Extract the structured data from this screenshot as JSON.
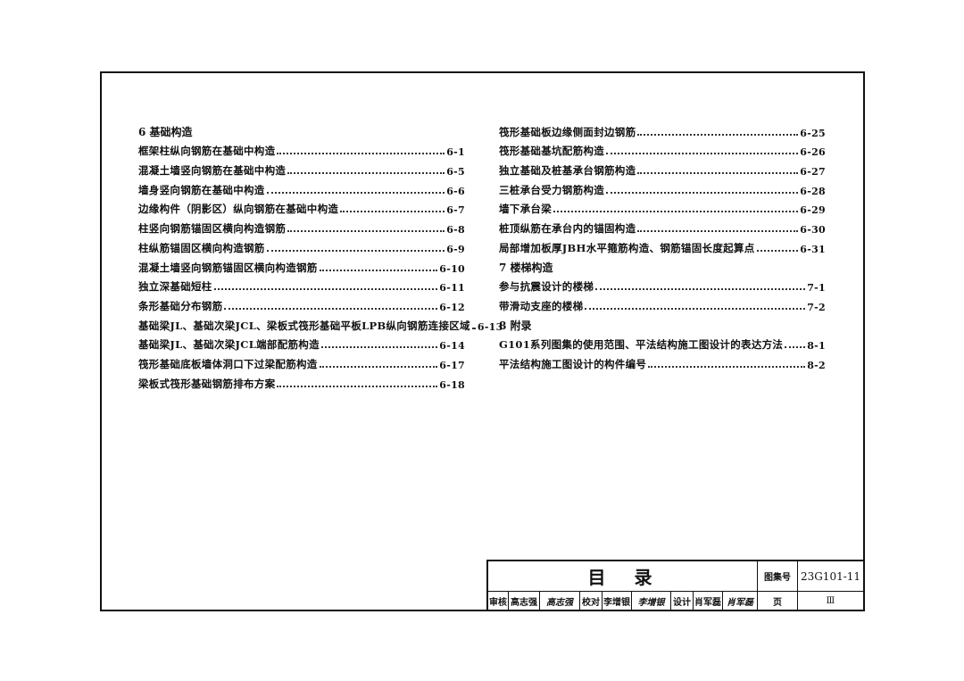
{
  "left_column": [
    {
      "type": "section",
      "text": "6 基础构造"
    },
    {
      "text": "框架柱纵向钢筋在基础中构造",
      "page": "6-1"
    },
    {
      "text": "混凝土墙竖向钢筋在基础中构造",
      "page": "6-5"
    },
    {
      "text": "墙身竖向钢筋在基础中构造",
      "page": "6-6"
    },
    {
      "text": "边缘构件（阴影区）纵向钢筋在基础中构造",
      "page": "6-7"
    },
    {
      "text": "柱竖向钢筋锚固区横向构造钢筋",
      "page": "6-8"
    },
    {
      "text": "柱纵筋锚固区横向构造钢筋",
      "page": "6-9"
    },
    {
      "text": "混凝土墙竖向钢筋锚固区横向构造钢筋",
      "page": "6-10"
    },
    {
      "text": "独立深基础短柱",
      "page": "6-11"
    },
    {
      "text": "条形基础分布钢筋",
      "page": "6-12"
    },
    {
      "text": "基础梁JL、基础次梁JCL、梁板式筏形基础平板LPB纵向钢筋连接区域",
      "page": "6-13"
    },
    {
      "text": "基础梁JL、基础次梁JCL端部配筋构造",
      "page": "6-14"
    },
    {
      "text": "筏形基础底板墙体洞口下过梁配筋构造",
      "page": "6-17"
    },
    {
      "text": "梁板式筏形基础钢筋排布方案",
      "page": "6-18"
    }
  ],
  "right_column": [
    {
      "text": "筏形基础板边缘侧面封边钢筋",
      "page": "6-25"
    },
    {
      "text": "筏形基础基坑配筋构造",
      "page": "6-26"
    },
    {
      "text": "独立基础及桩基承台钢筋构造",
      "page": "6-27"
    },
    {
      "text": "三桩承台受力钢筋构造",
      "page": "6-28"
    },
    {
      "text": "墙下承台梁",
      "page": "6-29"
    },
    {
      "text": "桩顶纵筋在承台内的锚固构造",
      "page": "6-30"
    },
    {
      "text": "局部增加板厚JBH水平箍筋构造、钢筋锚固长度起算点",
      "page": "6-31"
    },
    {
      "type": "section",
      "text": "7 楼梯构造"
    },
    {
      "text": "参与抗震设计的楼梯",
      "page": "7-1"
    },
    {
      "text": "带滑动支座的楼梯",
      "page": "7-2"
    },
    {
      "type": "section",
      "text": "8 附录"
    },
    {
      "text": "G101系列图集的使用范围、平法结构施工图设计的表达方法",
      "page": "8-1"
    },
    {
      "text": "平法结构施工图设计的构件编号",
      "page": "8-2"
    }
  ],
  "title_block": {
    "title": "目　录",
    "atlas_label": "图集号",
    "atlas_no": "23G101-11",
    "review_label": "审核",
    "reviewer": "高志强",
    "reviewer_sig": "高志强",
    "check_label": "校对",
    "checker": "李增银",
    "checker_sig": "李增银",
    "design_label": "设计",
    "designer": "肖军磊",
    "designer_sig": "肖军磊",
    "page_label": "页",
    "page": "Ⅲ"
  }
}
